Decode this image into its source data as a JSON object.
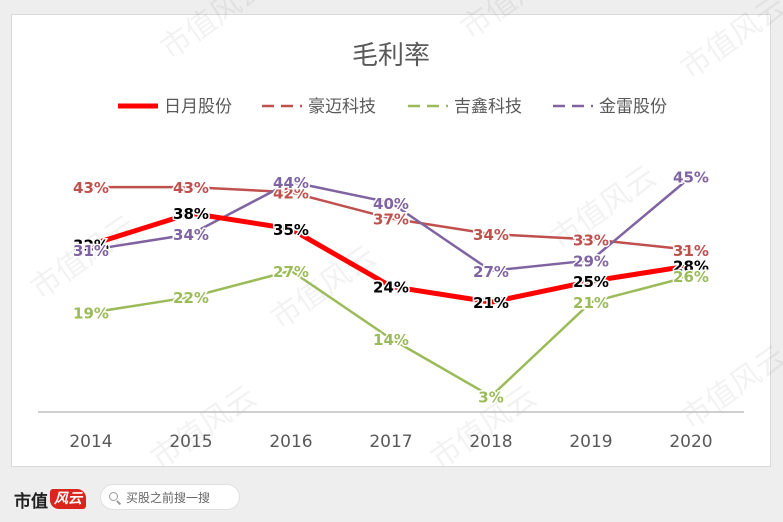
{
  "chart_data": {
    "type": "line",
    "title": "毛利率",
    "categories": [
      "2014",
      "2015",
      "2016",
      "2017",
      "2018",
      "2019",
      "2020"
    ],
    "ylim": [
      0,
      52
    ],
    "grid": false,
    "legend_position": "top",
    "series": [
      {
        "name": "日月股份",
        "values": [
          32,
          38,
          35,
          24,
          21,
          25,
          28
        ],
        "labels": [
          "32%",
          "38%",
          "35%",
          "24%",
          "21%",
          "25%",
          "28%"
        ],
        "color": "#ff0000",
        "label_color": "#000000",
        "style": "solid"
      },
      {
        "name": "豪迈科技",
        "values": [
          43,
          43,
          42,
          37,
          34,
          33,
          31
        ],
        "labels": [
          "43%",
          "43%",
          "42%",
          "37%",
          "34%",
          "33%",
          "31%"
        ],
        "color": "#c0504d",
        "label_color": "#c0504d",
        "style": "dashed"
      },
      {
        "name": "吉鑫科技",
        "values": [
          19,
          22,
          27,
          14,
          3,
          21,
          26
        ],
        "labels": [
          "19%",
          "22%",
          "27%",
          "14%",
          "3%",
          "21%",
          "26%"
        ],
        "color": "#9bbb59",
        "label_color": "#9bbb59",
        "style": "dashed"
      },
      {
        "name": "金雷股份",
        "values": [
          31,
          34,
          44,
          40,
          27,
          29,
          45
        ],
        "labels": [
          "31%",
          "34%",
          "44%",
          "40%",
          "27%",
          "29%",
          "45%"
        ],
        "color": "#8064a2",
        "label_color": "#8064a2",
        "style": "dashed"
      }
    ]
  },
  "watermark": {
    "text": "市值风云"
  },
  "footer": {
    "brand_text": "市值",
    "brand_mark": "风云",
    "search_placeholder": "买股之前搜一搜",
    "search_icon": "search-icon"
  }
}
